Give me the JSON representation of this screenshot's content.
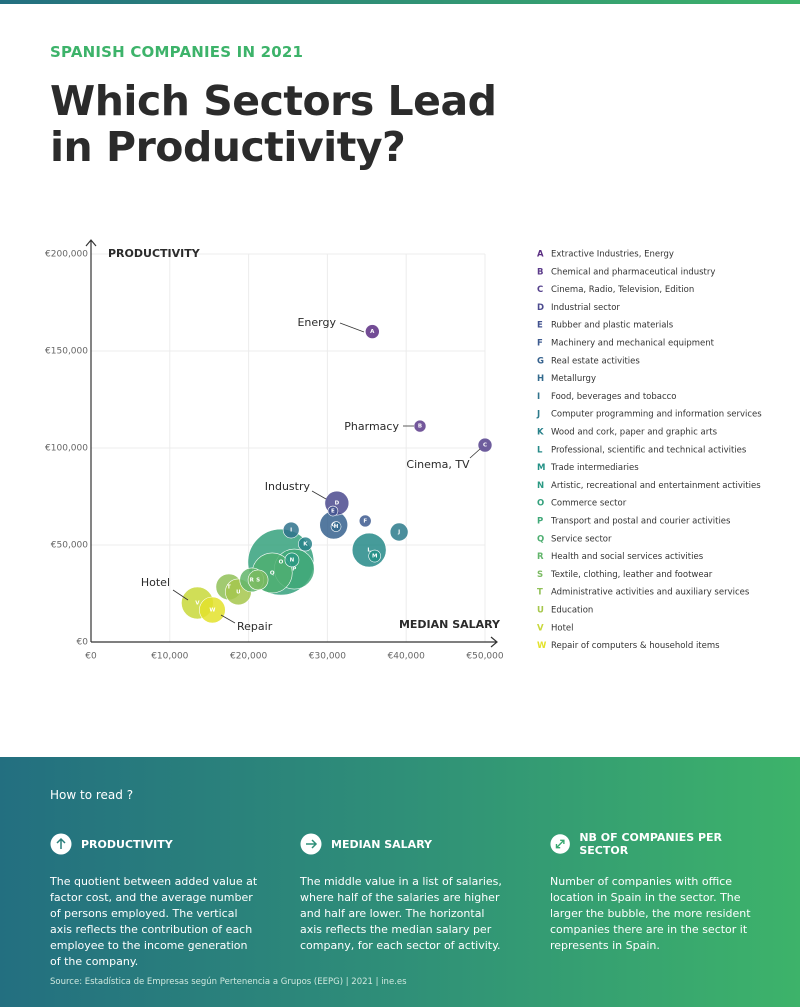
{
  "header": {
    "kicker": "SPANISH COMPANIES IN 2021",
    "title_lines": [
      "Which Sectors Lead",
      "in Productivity?"
    ]
  },
  "chart_data": {
    "type": "scatter",
    "y_label": "PRODUCTIVITY",
    "x_label": "MEDIAN SALARY",
    "xlim": [
      0,
      50000
    ],
    "ylim": [
      0,
      200000
    ],
    "xticks": [
      {
        "value": 0,
        "label": "€0"
      },
      {
        "value": 10000,
        "label": "€10,000"
      },
      {
        "value": 20000,
        "label": "€20,000"
      },
      {
        "value": 30000,
        "label": "€30,000"
      },
      {
        "value": 40000,
        "label": "€40,000"
      },
      {
        "value": 50000,
        "label": "€50,000"
      }
    ],
    "yticks": [
      {
        "value": 0,
        "label": "€0"
      },
      {
        "value": 50000,
        "label": "€50,000"
      },
      {
        "value": 100000,
        "label": "€100,000"
      },
      {
        "value": 150000,
        "label": "€150,000"
      },
      {
        "value": 200000,
        "label": "€200,000"
      }
    ],
    "grid": true,
    "letters": [
      "A",
      "B",
      "C",
      "D",
      "E",
      "F",
      "G",
      "H",
      "I",
      "J",
      "K",
      "L",
      "M",
      "N",
      "O",
      "P",
      "Q",
      "R",
      "S",
      "T",
      "U",
      "V",
      "W"
    ],
    "sectors": [
      "Extractive Industries, Energy",
      "Chemical and pharmaceutical industry",
      "Cinema, Radio, Television, Edition",
      "Industrial sector",
      "Rubber and plastic materials",
      "Machinery and mechanical equipment",
      "Real estate activities",
      "Metallurgy",
      "Food, beverages and tobacco",
      "Computer programming and information services",
      "Wood and cork, paper and graphic arts",
      "Professional, scientific and technical activities",
      "Trade intermediaries",
      "Artistic, recreational and entertainment activities",
      "Commerce sector",
      "Transport and postal and courier activities",
      "Service sector",
      "Health and social services activities",
      "Textile, clothing, leather and footwear",
      "Administrative activities and auxiliary services",
      "Education",
      "Hotel",
      "Repair of computers & household items"
    ],
    "x": [
      35700,
      41750,
      50000,
      31200,
      30700,
      34800,
      30800,
      31100,
      25400,
      39100,
      27200,
      35300,
      36000,
      25500,
      24100,
      25800,
      23000,
      20400,
      21200,
      17500,
      18700,
      13500,
      15400
    ],
    "values": [
      160000,
      111300,
      101500,
      71600,
      67500,
      62400,
      60300,
      59500,
      57700,
      56700,
      50500,
      47400,
      44300,
      42300,
      41200,
      37600,
      35600,
      32000,
      32000,
      28400,
      25800,
      20100,
      16500
    ],
    "sizes": [
      49,
      36,
      49,
      144,
      25,
      36,
      196,
      25,
      64,
      81,
      49,
      289,
      36,
      49,
      1089,
      400,
      400,
      144,
      100,
      169,
      169,
      256,
      169
    ],
    "colors": [
      "#5a2d82",
      "#5b3a8a",
      "#55418c",
      "#4b4a8e",
      "#42528f",
      "#3d5a8f",
      "#36628e",
      "#336a8d",
      "#2f728c",
      "#2c7a8b",
      "#28818a",
      "#268a88",
      "#239186",
      "#2a9983",
      "#35a17d",
      "#40a878",
      "#4faf72",
      "#62b56b",
      "#7bbb62",
      "#91c158",
      "#a6c74c",
      "#c8d83a",
      "#e3e22b"
    ],
    "annotations": [
      "Energy",
      "Pharmacy",
      "Cinema, TV",
      "Industry",
      "Hotel",
      "Repair"
    ]
  },
  "footer": {
    "how_to": "How to read ?",
    "columns": [
      {
        "title": "PRODUCTIVITY",
        "text": "The quotient between added value at factor cost, and the average number of persons employed. The vertical axis reflects the contribution of each employee to the income generation of the company."
      },
      {
        "title": "MEDIAN SALARY",
        "text": "The middle value in a list of salaries, where half of the salaries are higher and half are lower. The horizontal axis reflects the median salary per company, for each sector of activity."
      },
      {
        "title": "NB OF COMPANIES PER SECTOR",
        "text": "Number of companies with office location in Spain in the sector. The larger the bubble, the more resident companies there are in the sector it represents in Spain."
      }
    ],
    "source": "Source: Estadística de Empresas según Pertenencia a Grupos (EEPG) | 2021 | ine.es"
  }
}
